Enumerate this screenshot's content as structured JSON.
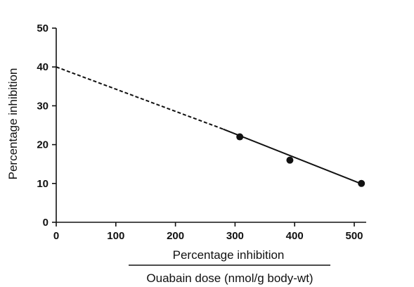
{
  "chart_data": {
    "type": "scatter",
    "title": "",
    "xlabel_numerator": "Percentage inhibition",
    "xlabel_denominator": "Ouabain dose (nmol/g body-wt)",
    "ylabel": "Percentage inhibition",
    "xlim": [
      0,
      520
    ],
    "ylim": [
      0,
      50
    ],
    "xticks": [
      0,
      100,
      200,
      300,
      400,
      500
    ],
    "yticks": [
      0,
      10,
      20,
      30,
      40,
      50
    ],
    "grid": false,
    "points": [
      {
        "x": 308,
        "y": 22
      },
      {
        "x": 392,
        "y": 16
      },
      {
        "x": 512,
        "y": 10
      }
    ],
    "fit_line": {
      "extrapolated": {
        "x": [
          0,
          280
        ],
        "y": [
          40,
          24
        ]
      },
      "fitted": {
        "x": [
          280,
          517
        ],
        "y": [
          24,
          9.6
        ]
      }
    }
  }
}
